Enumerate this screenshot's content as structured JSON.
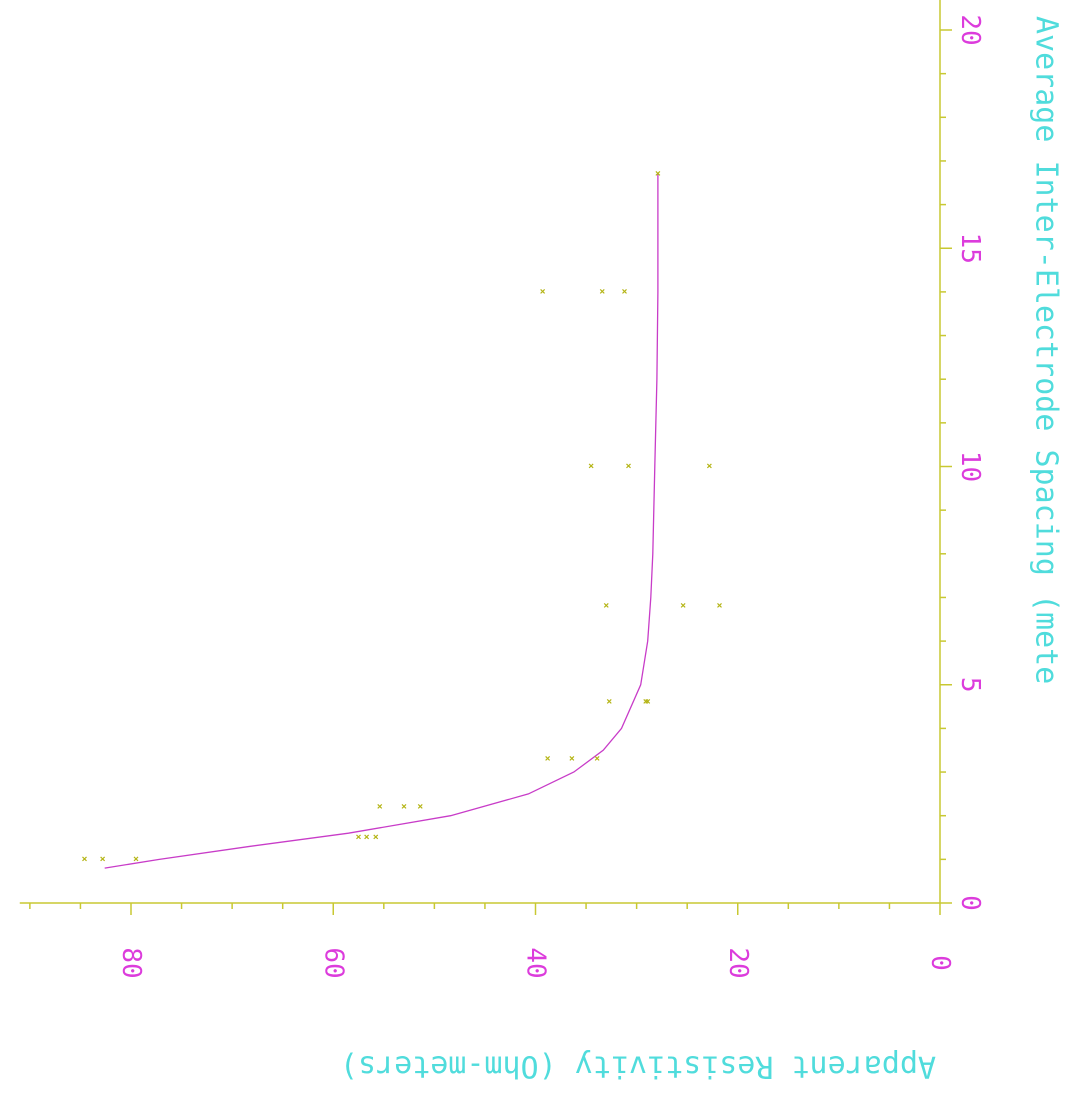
{
  "chart_data": {
    "type": "scatter",
    "title": "",
    "xlabel": "Average Inter-Electrode Spacing (mete",
    "ylabel": "Apparent Resistivity (Ohm-meters)",
    "x_ticks": [
      0,
      5,
      10,
      15,
      20
    ],
    "y_ticks": [
      0,
      20,
      40,
      60,
      80
    ],
    "xlim": [
      0,
      20.7
    ],
    "ylim": [
      0,
      91
    ],
    "grid": false,
    "colors": {
      "axis": "#c8c832",
      "x_tick_labels": "#dc3cdc",
      "y_tick_labels": "#dc3cdc",
      "x_title": "#50dcdc",
      "y_title": "#50dcdc",
      "markers": "#b4b414",
      "fit_curve": "#c83cc8",
      "background": "#ffffff"
    },
    "series": [
      {
        "type": "scatter",
        "marker": "x",
        "points": [
          {
            "x": 1.0,
            "y": 84.6
          },
          {
            "x": 1.0,
            "y": 82.8
          },
          {
            "x": 1.0,
            "y": 79.5
          },
          {
            "x": 1.5,
            "y": 57.5
          },
          {
            "x": 1.5,
            "y": 56.7
          },
          {
            "x": 1.5,
            "y": 55.8
          },
          {
            "x": 2.2,
            "y": 55.4
          },
          {
            "x": 2.2,
            "y": 53.0
          },
          {
            "x": 2.2,
            "y": 51.4
          },
          {
            "x": 3.3,
            "y": 38.8
          },
          {
            "x": 3.3,
            "y": 36.4
          },
          {
            "x": 3.3,
            "y": 33.9
          },
          {
            "x": 4.6,
            "y": 32.7
          },
          {
            "x": 4.6,
            "y": 29.1
          },
          {
            "x": 4.6,
            "y": 28.9
          },
          {
            "x": 6.8,
            "y": 33.0
          },
          {
            "x": 6.8,
            "y": 25.4
          },
          {
            "x": 6.8,
            "y": 21.8
          },
          {
            "x": 10.0,
            "y": 34.5
          },
          {
            "x": 10.0,
            "y": 30.8
          },
          {
            "x": 10.0,
            "y": 22.8
          },
          {
            "x": 14.0,
            "y": 39.3
          },
          {
            "x": 14.0,
            "y": 33.4
          },
          {
            "x": 14.0,
            "y": 31.2
          },
          {
            "x": 16.7,
            "y": 27.9
          }
        ]
      },
      {
        "type": "line",
        "x": [
          0.8,
          1.0,
          1.3,
          1.6,
          2.0,
          2.5,
          3.0,
          3.5,
          4.0,
          5.0,
          6.0,
          7.0,
          8.0,
          10.0,
          12.0,
          14.0,
          16.7
        ],
        "y": [
          82.6,
          77.2,
          68.2,
          58.5,
          48.4,
          40.7,
          36.2,
          33.3,
          31.5,
          29.6,
          28.9,
          28.6,
          28.4,
          28.2,
          28.0,
          27.9,
          27.9
        ]
      }
    ]
  }
}
